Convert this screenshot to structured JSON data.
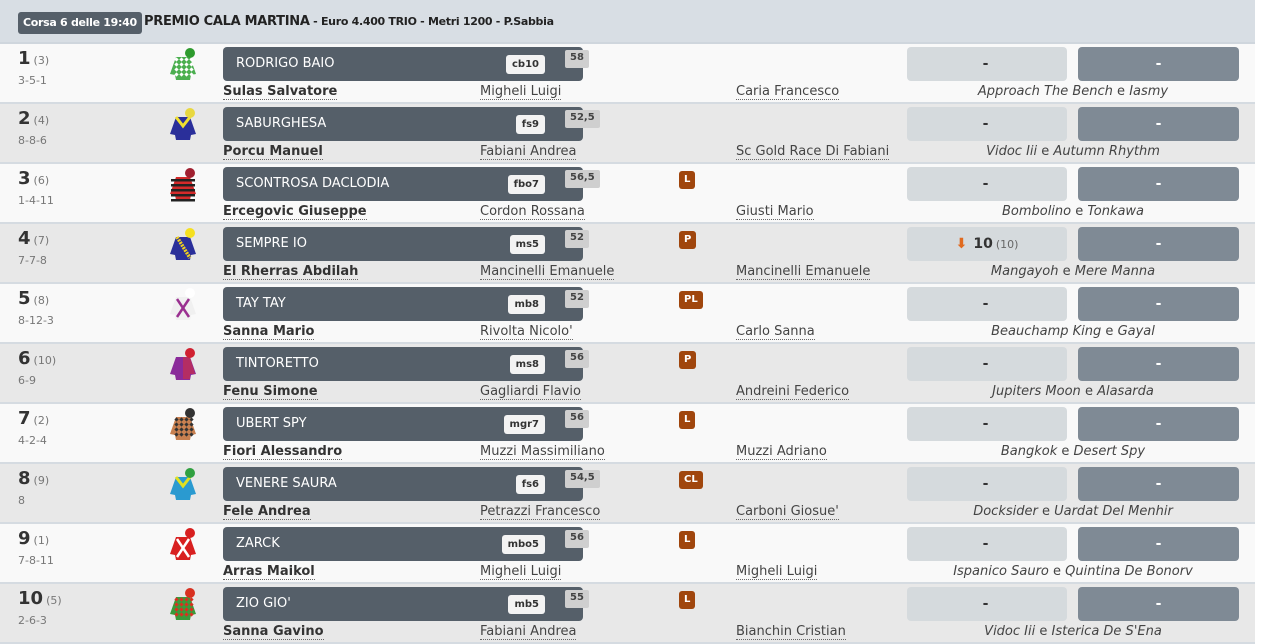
{
  "race": {
    "badge": "Corsa 6 delle 19:40",
    "name": "PREMIO CALA MARTINA",
    "details": " - Euro 4.400 TRIO - Metri 1200 - P.Sabbia"
  },
  "connector": "e",
  "runners": [
    {
      "num": "1",
      "draw": "(3)",
      "form": "3-5-1",
      "horse": "RODRIGO BAIO",
      "code": "cb10",
      "weight": "58",
      "flag": "",
      "jockey": "Sulas Salvatore",
      "trainer": "Migheli Luigi",
      "owner": "Caria Francesco",
      "sire": "Approach The Bench",
      "dam": "Iasmy",
      "odds": "-",
      "odds_prev": "",
      "odds_trend": "",
      "odds2": "-",
      "silk": {
        "body": "#4caf50",
        "accent": "#ffffff",
        "cap": "#2e9b2e",
        "pattern": "diamonds"
      }
    },
    {
      "num": "2",
      "draw": "(4)",
      "form": "8-8-6",
      "horse": "SABURGHESA",
      "code": "fs9",
      "weight": "52,5",
      "flag": "",
      "jockey": "Porcu Manuel",
      "trainer": "Fabiani Andrea",
      "owner": "Sc Gold Race Di Fabiani",
      "sire": "Vidoc Iii",
      "dam": "Autumn Rhythm",
      "odds": "-",
      "odds_prev": "",
      "odds_trend": "",
      "odds2": "-",
      "silk": {
        "body": "#2a2f9a",
        "accent": "#f0e030",
        "cap": "#e8d840",
        "pattern": "chevron"
      }
    },
    {
      "num": "3",
      "draw": "(6)",
      "form": "1-4-11",
      "horse": "SCONTROSA DACLODIA",
      "code": "fbo7",
      "weight": "56,5",
      "flag": "L",
      "jockey": "Ercegovic Giuseppe",
      "trainer": "Cordon Rossana",
      "owner": "Giusti Mario",
      "sire": "Bombolino",
      "dam": "Tonkawa",
      "odds": "-",
      "odds_prev": "",
      "odds_trend": "",
      "odds2": "-",
      "silk": {
        "body": "#d42a2a",
        "accent": "#222222",
        "cap": "#a02030",
        "pattern": "hoops"
      }
    },
    {
      "num": "4",
      "draw": "(7)",
      "form": "7-7-8",
      "horse": "SEMPRE IO",
      "code": "ms5",
      "weight": "52",
      "flag": "P",
      "jockey": "El Rherras Abdilah",
      "trainer": "Mancinelli Emanuele",
      "owner": "Mancinelli Emanuele",
      "sire": "Mangayoh",
      "dam": "Mere Manna",
      "odds": "10",
      "odds_prev": "(10)",
      "odds_trend": "down",
      "odds2": "-",
      "silk": {
        "body": "#2a2f9a",
        "accent": "#f0d020",
        "cap": "#f5e020",
        "pattern": "sash"
      }
    },
    {
      "num": "5",
      "draw": "(8)",
      "form": "8-12-3",
      "horse": "TAY TAY",
      "code": "mb8",
      "weight": "52",
      "flag": "PL",
      "jockey": "Sanna Mario",
      "trainer": "Rivolta Nicolo'",
      "owner": "Carlo Sanna",
      "sire": "Beauchamp King",
      "dam": "Gayal",
      "odds": "-",
      "odds_prev": "",
      "odds_trend": "",
      "odds2": "-",
      "silk": {
        "body": "#f0f0f0",
        "accent": "#9a3090",
        "cap": "#ffffff",
        "pattern": "cross"
      }
    },
    {
      "num": "6",
      "draw": "(10)",
      "form": "6-9",
      "horse": "TINTORETTO",
      "code": "ms8",
      "weight": "56",
      "flag": "P",
      "jockey": "Fenu Simone",
      "trainer": "Gagliardi Flavio",
      "owner": "Andreini Federico",
      "sire": "Jupiters Moon",
      "dam": "Alasarda",
      "odds": "-",
      "odds_prev": "",
      "odds_trend": "",
      "odds2": "-",
      "silk": {
        "body": "#8a2a9a",
        "accent": "#d03040",
        "cap": "#d02030",
        "pattern": "halves"
      }
    },
    {
      "num": "7",
      "draw": "(2)",
      "form": "4-2-4",
      "horse": "UBERT SPY",
      "code": "mgr7",
      "weight": "56",
      "flag": "L",
      "jockey": "Fiori Alessandro",
      "trainer": "Muzzi Massimiliano",
      "owner": "Muzzi Adriano",
      "sire": "Bangkok",
      "dam": "Desert Spy",
      "odds": "-",
      "odds_prev": "",
      "odds_trend": "",
      "odds2": "-",
      "silk": {
        "body": "#c88050",
        "accent": "#333333",
        "cap": "#333333",
        "pattern": "diamonds"
      }
    },
    {
      "num": "8",
      "draw": "(9)",
      "form": "8",
      "horse": "VENERE SAURA",
      "code": "fs6",
      "weight": "54,5",
      "flag": "CL",
      "jockey": "Fele Andrea",
      "trainer": "Petrazzi Francesco",
      "owner": "Carboni Giosue'",
      "sire": "Docksider",
      "dam": "Uardat Del Menhir",
      "odds": "-",
      "odds_prev": "",
      "odds_trend": "",
      "odds2": "-",
      "silk": {
        "body": "#2a9ad0",
        "accent": "#e0e020",
        "cap": "#30a040",
        "pattern": "chevron"
      }
    },
    {
      "num": "9",
      "draw": "(1)",
      "form": "7-8-11",
      "horse": "ZARCK",
      "code": "mbo5",
      "weight": "56",
      "flag": "L",
      "jockey": "Arras Maikol",
      "trainer": "Migheli Luigi",
      "owner": "Migheli Luigi",
      "sire": "Ispanico Sauro",
      "dam": "Quintina De Bonorv",
      "odds": "-",
      "odds_prev": "",
      "odds_trend": "",
      "odds2": "-",
      "silk": {
        "body": "#d82020",
        "accent": "#ffffff",
        "cap": "#d82020",
        "pattern": "cross"
      }
    },
    {
      "num": "10",
      "draw": "(5)",
      "form": "2-6-3",
      "horse": "ZIO GIO'",
      "code": "mb5",
      "weight": "55",
      "flag": "L",
      "jockey": "Sanna Gavino",
      "trainer": "Fabiani Andrea",
      "owner": "Bianchin Cristian",
      "sire": "Vidoc Iii",
      "dam": "Isterica De S'Ena",
      "odds": "-",
      "odds_prev": "",
      "odds_trend": "",
      "odds2": "-",
      "silk": {
        "body": "#3a9a3a",
        "accent": "#d83020",
        "cap": "#d83020",
        "pattern": "diamonds"
      }
    }
  ]
}
